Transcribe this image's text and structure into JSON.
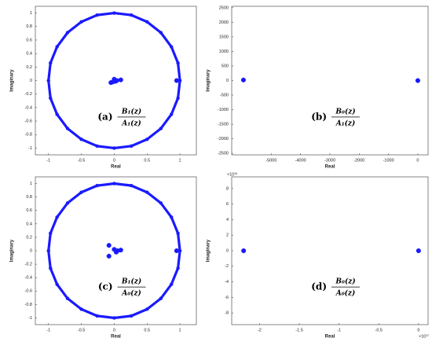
{
  "chart_data": [
    {
      "type": "scatter",
      "xlabel": "Real",
      "ylabel": "Imaginary",
      "annotation": {
        "label": "(a)",
        "numerator": "B₁(z)",
        "denominator": "A₁(z)"
      },
      "xlim": [
        -1.2,
        1.25
      ],
      "ylim": [
        -1.1,
        1.1
      ],
      "xticks": [
        -1,
        -0.5,
        0,
        0.5,
        1
      ],
      "yticks": [
        -1,
        -0.8,
        -0.6,
        -0.4,
        -0.2,
        0,
        0.2,
        0.4,
        0.6,
        0.8,
        1
      ],
      "series": [
        {
          "color": "#1a1aff",
          "connected": true,
          "x": [
            1,
            0.97,
            0.87,
            0.71,
            0.5,
            0.26,
            0,
            -0.26,
            -0.5,
            -0.71,
            -0.87,
            -0.97,
            -1,
            -0.97,
            -0.87,
            -0.71,
            -0.5,
            -0.26,
            0,
            0.26,
            0.5,
            0.71,
            0.87,
            0.97
          ],
          "y": [
            0,
            0.26,
            0.5,
            0.71,
            0.87,
            0.97,
            1,
            0.97,
            0.87,
            0.71,
            0.5,
            0.26,
            0,
            -0.26,
            -0.5,
            -0.71,
            -0.87,
            -0.97,
            -1,
            -0.97,
            -0.87,
            -0.71,
            -0.5,
            -0.26
          ]
        },
        {
          "color": "#1a1aff",
          "x": [
            -0.05,
            0,
            0.02,
            0.04,
            -0.02,
            0.1,
            0.95
          ],
          "y": [
            -0.03,
            0.02,
            -0.01,
            0,
            -0.02,
            0.01,
            0
          ]
        }
      ]
    },
    {
      "type": "scatter",
      "xlabel": "Real",
      "ylabel": "Imaginary",
      "annotation": {
        "label": "(b)",
        "numerator": "B₀(z)",
        "denominator": "A₁(z)"
      },
      "xlim": [
        -6350,
        350
      ],
      "ylim": [
        -2550,
        2550
      ],
      "xticks": [
        -5000,
        -4000,
        -3000,
        -2000,
        -1000,
        0
      ],
      "yticks": [
        -2500,
        -2000,
        -1500,
        -1000,
        -500,
        0,
        500,
        1000,
        1500,
        2000,
        2500
      ],
      "series": [
        {
          "color": "#1a1aff",
          "x": [
            -5950,
            0
          ],
          "y": [
            20,
            0
          ]
        }
      ]
    },
    {
      "type": "scatter",
      "xlabel": "Real",
      "ylabel": "Imaginary",
      "annotation": {
        "label": "(c)",
        "numerator": "B₁(z)",
        "denominator": "A₀(z)"
      },
      "xlim": [
        -1.2,
        1.25
      ],
      "ylim": [
        -1.1,
        1.1
      ],
      "xticks": [
        -1,
        -0.5,
        0,
        0.5,
        1
      ],
      "yticks": [
        -1,
        -0.8,
        -0.6,
        -0.4,
        -0.2,
        0,
        0.2,
        0.4,
        0.6,
        0.8,
        1
      ],
      "series": [
        {
          "color": "#1a1aff",
          "connected": true,
          "x": [
            1,
            0.97,
            0.87,
            0.71,
            0.5,
            0.26,
            0,
            -0.26,
            -0.5,
            -0.71,
            -0.87,
            -0.97,
            -1,
            -0.97,
            -0.87,
            -0.71,
            -0.5,
            -0.26,
            0,
            0.26,
            0.5,
            0.71,
            0.87,
            0.97
          ],
          "y": [
            0,
            0.26,
            0.5,
            0.71,
            0.87,
            0.97,
            1,
            0.97,
            0.87,
            0.71,
            0.5,
            0.26,
            0,
            -0.26,
            -0.5,
            -0.71,
            -0.87,
            -0.97,
            -1,
            -0.97,
            -0.87,
            -0.71,
            -0.5,
            -0.26
          ]
        },
        {
          "color": "#1a1aff",
          "x": [
            -0.08,
            -0.08,
            0,
            0.03,
            0.05,
            0.1,
            0.95
          ],
          "y": [
            0.08,
            -0.08,
            0.02,
            -0.02,
            0,
            0.01,
            0
          ]
        }
      ]
    },
    {
      "type": "scatter",
      "xlabel": "Real",
      "ylabel": "Imaginary",
      "annotation": {
        "label": "(d)",
        "numerator": "B₀(z)",
        "denominator": "A₀(z)"
      },
      "x_offset": "×10¹⁷",
      "y_offset": "×10¹⁶",
      "xlim": [
        -2.35,
        0.12
      ],
      "ylim": [
        -9.5,
        9.5
      ],
      "xticks": [
        -2,
        -1.5,
        -1,
        -0.5,
        0
      ],
      "yticks": [
        -8,
        -6,
        -4,
        -2,
        0,
        2,
        4,
        6,
        8
      ],
      "series": [
        {
          "color": "#1a1aff",
          "x": [
            -2.2,
            0
          ],
          "y": [
            0,
            0
          ]
        }
      ]
    }
  ]
}
